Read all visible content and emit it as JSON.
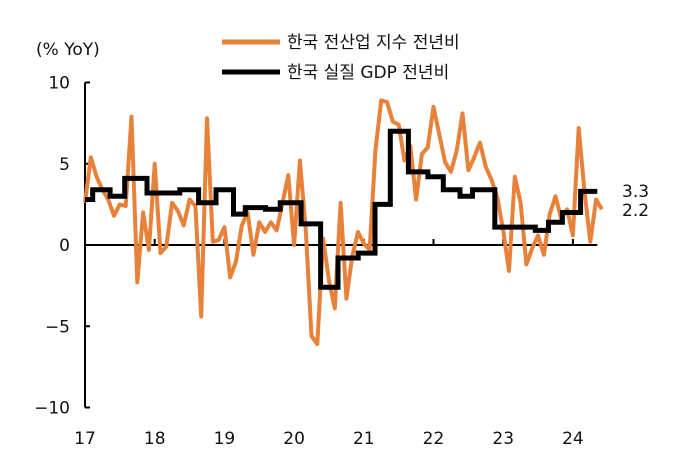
{
  "chart_data": {
    "type": "line",
    "ylabel": "(% YoY)",
    "ylim": [
      -10,
      10
    ],
    "yticks": [
      10,
      5,
      0,
      -5,
      -10
    ],
    "ytick_labels": [
      "10",
      "5",
      "0",
      "−5",
      "−10"
    ],
    "xlim": [
      17,
      24.4
    ],
    "xticks": [
      17,
      18,
      19,
      20,
      21,
      22,
      23,
      24
    ],
    "xtick_labels": [
      "17",
      "18",
      "19",
      "20",
      "21",
      "22",
      "23",
      "24"
    ],
    "legend_position": "top-center",
    "series": [
      {
        "name": "한국 전산업 지수 전년비",
        "color": "#E8823A",
        "frequency": "monthly",
        "x_start": 17,
        "values": [
          2.6,
          5.4,
          4.2,
          3.4,
          2.8,
          1.8,
          2.5,
          2.4,
          7.9,
          -2.3,
          2.0,
          -0.3,
          5.0,
          -0.5,
          -0.1,
          2.6,
          2.1,
          1.2,
          2.8,
          2.4,
          -4.4,
          7.8,
          0.2,
          0.3,
          1.1,
          -2.0,
          -1.0,
          1.2,
          2.0,
          -0.6,
          1.4,
          0.8,
          1.4,
          0.9,
          2.6,
          4.3,
          0.0,
          5.2,
          1.0,
          -5.6,
          -6.1,
          0.4,
          -2.2,
          -3.9,
          2.6,
          -3.3,
          -0.7,
          0.8,
          0.1,
          -0.3,
          5.8,
          8.9,
          8.8,
          7.6,
          7.4,
          5.2,
          6.1,
          2.8,
          5.6,
          6.0,
          8.5,
          6.8,
          5.1,
          4.5,
          5.8,
          8.1,
          4.6,
          5.4,
          6.3,
          4.8,
          4.0,
          2.9,
          0.9,
          -1.6,
          4.2,
          2.6,
          -1.2,
          -0.2,
          0.6,
          -0.6,
          1.9,
          3.0,
          1.6,
          2.2,
          0.6,
          7.2,
          3.3,
          0.2,
          2.8,
          2.2
        ],
        "last_label": "2.2"
      },
      {
        "name": "한국 실질 GDP 전년비",
        "color": "#000000",
        "frequency": "quarterly-step",
        "steps": [
          [
            17.0,
            2.8
          ],
          [
            17.11,
            3.4
          ],
          [
            17.36,
            3.0
          ],
          [
            17.57,
            4.1
          ],
          [
            17.89,
            3.2
          ],
          [
            18.36,
            3.4
          ],
          [
            18.63,
            2.6
          ],
          [
            18.88,
            3.4
          ],
          [
            19.13,
            1.9
          ],
          [
            19.3,
            2.3
          ],
          [
            19.59,
            2.2
          ],
          [
            19.8,
            2.6
          ],
          [
            20.1,
            1.3
          ],
          [
            20.38,
            -2.6
          ],
          [
            20.63,
            -0.8
          ],
          [
            20.92,
            -0.5
          ],
          [
            21.16,
            2.5
          ],
          [
            21.38,
            7.0
          ],
          [
            21.64,
            4.5
          ],
          [
            21.92,
            4.2
          ],
          [
            22.14,
            3.4
          ],
          [
            22.38,
            3.0
          ],
          [
            22.56,
            3.4
          ],
          [
            22.88,
            1.1
          ],
          [
            23.46,
            0.9
          ],
          [
            23.65,
            1.4
          ],
          [
            23.85,
            2.0
          ],
          [
            24.11,
            3.3
          ]
        ],
        "x_end": 24.35,
        "last_label": "3.3"
      }
    ]
  }
}
